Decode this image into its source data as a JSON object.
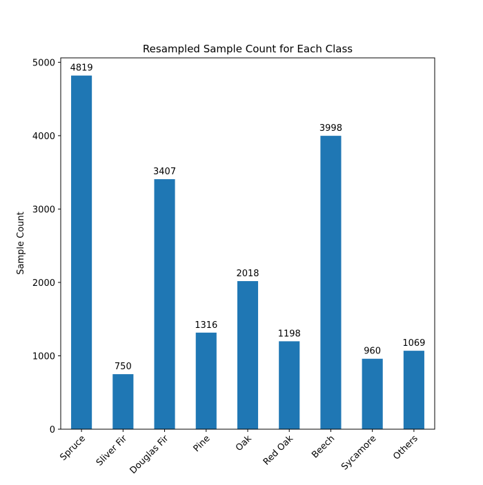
{
  "chart_data": {
    "type": "bar",
    "title": "Resampled Sample Count for Each Class",
    "xlabel": "",
    "ylabel": "Sample Count",
    "categories": [
      "Spruce",
      "Sliver Fir",
      "Douglas Fir",
      "Pine",
      "Oak",
      "Red Oak",
      "Beech",
      "Sycamore",
      "Others"
    ],
    "values": [
      4819,
      750,
      3407,
      1316,
      2018,
      1198,
      3998,
      960,
      1069
    ],
    "data_labels": [
      "4819",
      "750",
      "3407",
      "1316",
      "2018",
      "1198",
      "3998",
      "960",
      "1069"
    ],
    "ylim": [
      0,
      5060
    ],
    "yticks": [
      0,
      1000,
      2000,
      3000,
      4000,
      5000
    ],
    "ytick_labels": [
      "0",
      "1000",
      "2000",
      "3000",
      "4000",
      "5000"
    ],
    "xtick_rotation_deg": 45,
    "grid": false,
    "legend": "none",
    "bar_color": "#1f77b4"
  }
}
